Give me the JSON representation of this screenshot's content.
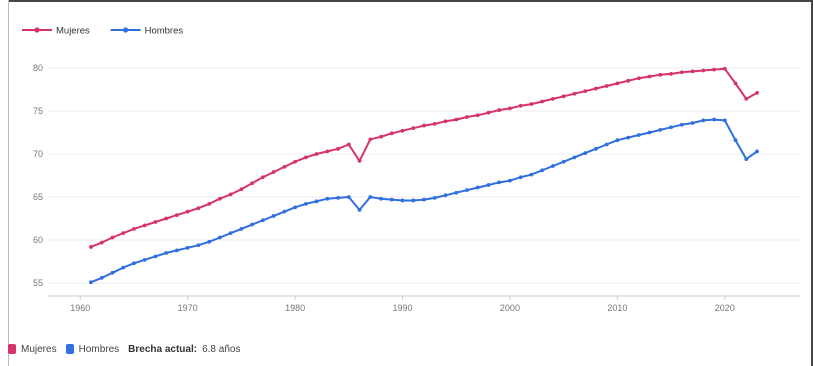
{
  "chart_data": {
    "type": "line",
    "title": "",
    "xlabel": "",
    "ylabel": "",
    "xlim": [
      1957,
      2027
    ],
    "ylim": [
      53.5,
      81.5
    ],
    "x_ticks": [
      1960,
      1970,
      1980,
      1990,
      2000,
      2010,
      2020
    ],
    "y_ticks": [
      55,
      60,
      65,
      70,
      75,
      80
    ],
    "grid": "horizontal",
    "legend": "top-left",
    "x": [
      1961,
      1962,
      1963,
      1964,
      1965,
      1966,
      1967,
      1968,
      1969,
      1970,
      1971,
      1972,
      1973,
      1974,
      1975,
      1976,
      1977,
      1978,
      1979,
      1980,
      1981,
      1982,
      1983,
      1984,
      1985,
      1986,
      1987,
      1988,
      1989,
      1990,
      1991,
      1992,
      1993,
      1994,
      1995,
      1996,
      1997,
      1998,
      1999,
      2000,
      2001,
      2002,
      2003,
      2004,
      2005,
      2006,
      2007,
      2008,
      2009,
      2010,
      2011,
      2012,
      2013,
      2014,
      2015,
      2016,
      2017,
      2018,
      2019,
      2020,
      2021,
      2022,
      2023
    ],
    "series": [
      {
        "name": "Mujeres",
        "color": "#d6336c",
        "values": [
          59.2,
          59.7,
          60.3,
          60.8,
          61.3,
          61.7,
          62.1,
          62.5,
          62.9,
          63.3,
          63.7,
          64.2,
          64.8,
          65.3,
          65.9,
          66.6,
          67.3,
          67.9,
          68.5,
          69.1,
          69.6,
          70.0,
          70.3,
          70.6,
          71.1,
          69.2,
          71.7,
          72.0,
          72.4,
          72.7,
          73.0,
          73.3,
          73.5,
          73.8,
          74.0,
          74.3,
          74.5,
          74.8,
          75.1,
          75.3,
          75.6,
          75.8,
          76.1,
          76.4,
          76.7,
          77.0,
          77.3,
          77.6,
          77.9,
          78.2,
          78.5,
          78.8,
          79.0,
          79.2,
          79.3,
          79.5,
          79.6,
          79.7,
          79.8,
          79.9,
          78.2,
          76.4,
          77.1
        ]
      },
      {
        "name": "Hombres",
        "color": "#2f6fde",
        "values": [
          55.1,
          55.6,
          56.2,
          56.8,
          57.3,
          57.7,
          58.1,
          58.5,
          58.8,
          59.1,
          59.4,
          59.8,
          60.3,
          60.8,
          61.3,
          61.8,
          62.3,
          62.8,
          63.3,
          63.8,
          64.2,
          64.5,
          64.8,
          64.9,
          65.0,
          63.5,
          65.0,
          64.8,
          64.7,
          64.6,
          64.6,
          64.7,
          64.9,
          65.2,
          65.5,
          65.8,
          66.1,
          66.4,
          66.7,
          66.9,
          67.3,
          67.6,
          68.1,
          68.6,
          69.1,
          69.6,
          70.1,
          70.6,
          71.1,
          71.6,
          71.9,
          72.2,
          72.5,
          72.8,
          73.1,
          73.4,
          73.6,
          73.9,
          74.0,
          73.9,
          71.6,
          69.4,
          70.3
        ]
      }
    ]
  },
  "footer": {
    "mujeres_label": "Mujeres",
    "mujeres_color": "#d6336c",
    "hombres_label": "Hombres",
    "hombres_color": "#2f6fde",
    "gap_label": "Brecha actual:",
    "gap_value": "6.8 años"
  }
}
